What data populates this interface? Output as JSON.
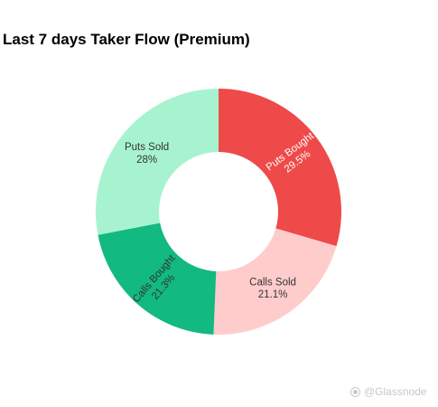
{
  "chart_data": {
    "type": "pie",
    "title": "Last 7 days Taker Flow (Premium)",
    "donut": true,
    "start_angle_deg": 0,
    "slices": [
      {
        "label": "Puts Bought",
        "percent_label": "29.5%",
        "value": 29.5,
        "color": "#ef4a4a",
        "text_color": "#ffffff",
        "rotated": true
      },
      {
        "label": "Calls Sold",
        "percent_label": "21.1%",
        "value": 21.1,
        "color": "#ffcccc",
        "text_color": "#333333",
        "rotated": false
      },
      {
        "label": "Calls Bought",
        "percent_label": "21.3%",
        "value": 21.3,
        "color": "#12b981",
        "text_color": "#333333",
        "rotated": true
      },
      {
        "label": "Puts Sold",
        "percent_label": "28%",
        "value": 28.0,
        "color": "#a7f3d0",
        "text_color": "#333333",
        "rotated": false
      }
    ],
    "legend": "none"
  },
  "watermark": {
    "text": "@Glassnode",
    "icon": "glassnode-logo-icon"
  }
}
